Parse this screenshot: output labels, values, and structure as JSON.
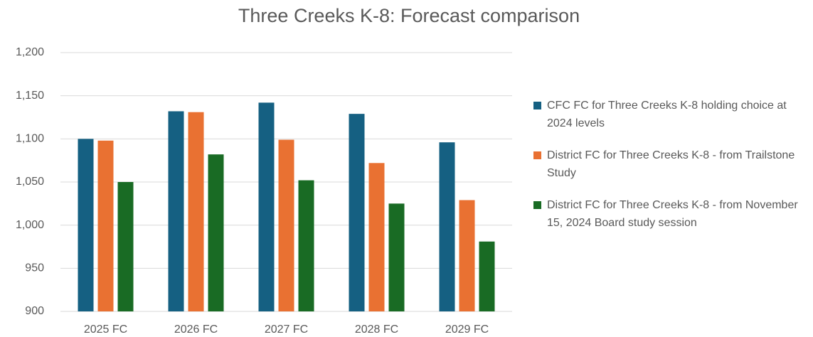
{
  "chart_data": {
    "type": "bar",
    "title": "Three Creeks K-8: Forecast comparison",
    "categories": [
      "2025 FC",
      "2026 FC",
      "2027 FC",
      "2028 FC",
      "2029 FC"
    ],
    "series": [
      {
        "name": "CFC FC for Three Creeks K-8 holding choice at 2024 levels",
        "color": "#156082",
        "values": [
          1100,
          1132,
          1142,
          1129,
          1096
        ]
      },
      {
        "name": "District FC for Three Creeks K-8 - from Trailstone Study",
        "color": "#e97132",
        "values": [
          1098,
          1131,
          1099,
          1072,
          1029
        ]
      },
      {
        "name": "District FC for Three Creeks K-8 - from November 15, 2024 Board study session",
        "color": "#196b24",
        "values": [
          1050,
          1082,
          1052,
          1025,
          981
        ]
      }
    ],
    "ylim": [
      900,
      1200
    ],
    "yticks": [
      900,
      950,
      {
        "value": 1000,
        "label": "1,000"
      },
      {
        "value": 1050,
        "label": "1,050"
      },
      {
        "value": 1100,
        "label": "1,100"
      },
      {
        "value": 1150,
        "label": "1,150"
      },
      {
        "value": 1200,
        "label": "1,200"
      }
    ],
    "grid": true,
    "legend": "right"
  }
}
